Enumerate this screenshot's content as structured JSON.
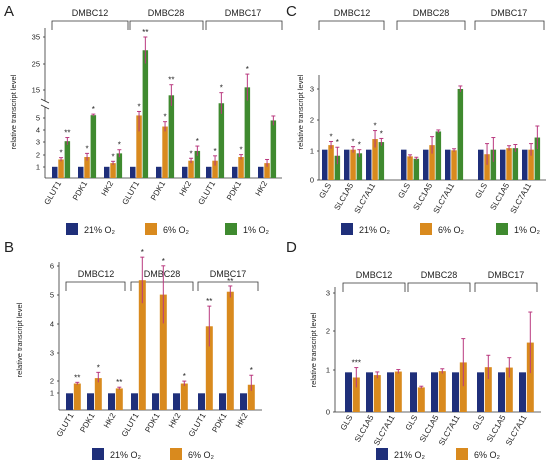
{
  "colors": {
    "21": "#1f2f7a",
    "6": "#d98a1e",
    "1": "#3f8a2f",
    "error": "#b9387e",
    "axis": "#333333"
  },
  "legend": {
    "o21": "21% O₂",
    "o6": "6% O₂",
    "o1": "1% O₂"
  },
  "chart_data": [
    {
      "panel": "A",
      "type": "bar",
      "ylabel": "relative transcript level",
      "ylim": [
        0,
        40
      ],
      "yticks": [
        "1",
        "2",
        "3",
        "4",
        "5",
        "15",
        "25",
        "35"
      ],
      "axis_break": true,
      "groups": [
        "DMBC12",
        "DMBC28",
        "DMBC17"
      ],
      "categories": [
        "GLUT1",
        "PDK1",
        "HK2",
        "GLUT1",
        "PDK1",
        "HK2",
        "GLUT1",
        "PDK1",
        "HK2"
      ],
      "series": [
        {
          "name": "21% O₂",
          "values": [
            1,
            1,
            1,
            1,
            1,
            1,
            1,
            1,
            1
          ],
          "errors": [
            0,
            0,
            0,
            0,
            0,
            0,
            0,
            0,
            0
          ]
        },
        {
          "name": "6% O₂",
          "values": [
            1.6,
            1.8,
            1.3,
            5.4,
            4.3,
            1.5,
            1.5,
            1.8,
            1.3
          ],
          "errors": [
            0.15,
            0.3,
            0.15,
            1.5,
            0.4,
            0.2,
            0.4,
            0.2,
            0.3
          ]
        },
        {
          "name": "1% O₂",
          "values": [
            3.1,
            5.5,
            2.1,
            30,
            13,
            2.3,
            10,
            16,
            4.8
          ],
          "errors": [
            0.3,
            0.4,
            0.3,
            5,
            4,
            0.4,
            4,
            5,
            0.4
          ]
        }
      ],
      "annotations": [
        "*",
        "**",
        "*",
        "*",
        "*",
        "*",
        "*",
        "**",
        "*",
        "**",
        "*",
        "*",
        "*",
        "*",
        "*",
        "*"
      ]
    },
    {
      "panel": "B",
      "type": "bar",
      "ylabel": "relative transcript level",
      "ylim": [
        0,
        6
      ],
      "yticks": [
        "1",
        "2",
        "3",
        "4",
        "5",
        "6"
      ],
      "axis_break": true,
      "groups": [
        "DMBC12",
        "DMBC28",
        "DMBC17"
      ],
      "categories": [
        "GLUT1",
        "PDK1",
        "HK2",
        "GLUT1",
        "PDK1",
        "HK2",
        "GLUT1",
        "PDK1",
        "HK2"
      ],
      "series": [
        {
          "name": "21% O₂",
          "values": [
            1,
            1,
            1,
            1,
            1,
            1,
            1,
            1,
            1
          ],
          "errors": [
            0,
            0,
            0,
            0,
            0,
            0,
            0,
            0,
            0
          ]
        },
        {
          "name": "6% O₂",
          "values": [
            1.8,
            2.1,
            1.4,
            5.5,
            5.0,
            1.8,
            3.9,
            5.1,
            1.7
          ],
          "errors": [
            0.1,
            0.2,
            0.1,
            0.8,
            1.0,
            0.2,
            0.7,
            0.2,
            0.5
          ]
        }
      ],
      "annotations": [
        "**",
        "*",
        "**",
        "*",
        "*",
        "*",
        "**",
        "**",
        "*"
      ]
    },
    {
      "panel": "C",
      "type": "bar",
      "ylabel": "relative transcript level",
      "ylim": [
        0,
        3.5
      ],
      "yticks": [
        "0",
        "1",
        "2",
        "3"
      ],
      "groups": [
        "DMBC12",
        "DMBC28",
        "DMBC17"
      ],
      "categories": [
        "GLS",
        "SLC1A5",
        "SLC7A11",
        "GLS",
        "SLC1A5",
        "SLC7A11",
        "GLS",
        "SLC1A5",
        "SLC7A11"
      ],
      "series": [
        {
          "name": "21% O₂",
          "values": [
            1,
            1,
            1,
            1,
            1,
            1,
            1,
            1,
            1
          ],
          "errors": [
            0,
            0,
            0,
            0,
            0,
            0,
            0,
            0,
            0
          ]
        },
        {
          "name": "6% O₂",
          "values": [
            1.15,
            1.0,
            1.35,
            0.78,
            1.15,
            0.98,
            0.85,
            1.05,
            1.0
          ],
          "errors": [
            0.12,
            0.1,
            0.28,
            0.05,
            0.28,
            0.05,
            0.35,
            0.08,
            0.2
          ]
        },
        {
          "name": "1% O₂",
          "values": [
            0.8,
            0.88,
            1.25,
            0.7,
            1.6,
            3.0,
            1.0,
            1.05,
            1.4
          ],
          "errors": [
            0.28,
            0.12,
            0.12,
            0.05,
            0.05,
            0.1,
            0.4,
            0.12,
            0.38
          ]
        }
      ],
      "annotations": [
        "*",
        "*",
        "*",
        "*",
        "*",
        "*"
      ]
    },
    {
      "panel": "D",
      "type": "bar",
      "ylabel": "relative transcript level",
      "ylim": [
        0,
        3.3
      ],
      "yticks": [
        "0",
        "1",
        "2",
        "3"
      ],
      "groups": [
        "DMBC12",
        "DMBC28",
        "DMBC17"
      ],
      "categories": [
        "GLS",
        "SLC1A5",
        "SLC7A11",
        "GLS",
        "SLC1A5",
        "SLC7A11",
        "GLS",
        "SLC1A5",
        "SLC7A11"
      ],
      "series": [
        {
          "name": "21% O₂",
          "values": [
            1,
            1,
            1,
            1,
            1,
            1,
            1,
            1,
            1
          ],
          "errors": [
            0,
            0,
            0,
            0,
            0,
            0,
            0,
            0,
            0
          ]
        },
        {
          "name": "6% O₂",
          "values": [
            0.87,
            0.93,
            1.02,
            0.62,
            1.03,
            1.25,
            1.13,
            1.12,
            1.75
          ],
          "errors": [
            0.25,
            0.08,
            0.05,
            0.03,
            0.06,
            0.6,
            0.3,
            0.25,
            0.77
          ]
        }
      ],
      "annotations": [
        "***"
      ]
    }
  ]
}
